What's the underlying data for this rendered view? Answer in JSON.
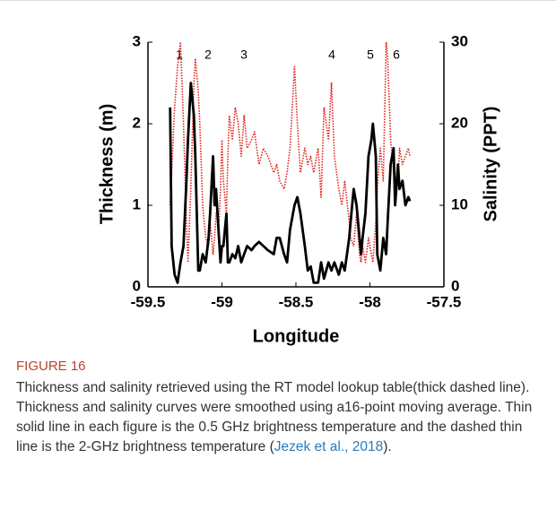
{
  "chart_data": {
    "type": "line",
    "xlabel": "Longitude",
    "ylabel": "Thickness (m)",
    "y2label": "Salinity (PPT)",
    "xlim": [
      -59.5,
      -57.5
    ],
    "xticks": [
      -59.5,
      -59,
      -58.5,
      -58,
      -57.5
    ],
    "ylim": [
      0,
      3
    ],
    "yticks": [
      0,
      1,
      2,
      3
    ],
    "y2lim": [
      0,
      30
    ],
    "y2ticks": [
      0,
      10,
      20,
      30
    ],
    "annotations": [
      "1",
      "2",
      "3",
      "4",
      "5",
      "6"
    ],
    "x": [
      -59.35,
      -59.34,
      -59.32,
      -59.3,
      -59.28,
      -59.26,
      -59.24,
      -59.23,
      -59.21,
      -59.19,
      -59.18,
      -59.16,
      -59.15,
      -59.13,
      -59.11,
      -59.09,
      -59.08,
      -59.06,
      -59.05,
      -59.04,
      -59.02,
      -59.01,
      -59.0,
      -58.99,
      -58.97,
      -58.96,
      -58.95,
      -58.93,
      -58.91,
      -58.89,
      -58.87,
      -58.85,
      -58.83,
      -58.8,
      -58.78,
      -58.75,
      -58.72,
      -58.69,
      -58.65,
      -58.63,
      -58.61,
      -58.58,
      -58.56,
      -58.54,
      -58.51,
      -58.49,
      -58.47,
      -58.44,
      -58.42,
      -58.4,
      -58.38,
      -58.35,
      -58.33,
      -58.31,
      -58.28,
      -58.26,
      -58.24,
      -58.21,
      -58.19,
      -58.17,
      -58.14,
      -58.13,
      -58.11,
      -58.09,
      -58.07,
      -58.06,
      -58.05,
      -58.03,
      -58.01,
      -57.99,
      -57.98,
      -57.96,
      -57.95,
      -57.93,
      -57.91,
      -57.89,
      -57.88,
      -57.86,
      -57.84,
      -57.83,
      -57.81,
      -57.8,
      -57.78,
      -57.76,
      -57.74,
      -57.73
    ],
    "series": [
      {
        "name": "Thickness",
        "color": "#000000",
        "axis": "y",
        "style": "solid",
        "values": [
          2.2,
          0.5,
          0.15,
          0.05,
          0.3,
          0.5,
          1.3,
          1.8,
          2.5,
          2.1,
          1.6,
          0.2,
          0.2,
          0.4,
          0.3,
          0.6,
          0.9,
          1.6,
          1.0,
          1.2,
          0.6,
          0.3,
          0.5,
          0.5,
          0.9,
          0.3,
          0.3,
          0.4,
          0.35,
          0.5,
          0.3,
          0.4,
          0.5,
          0.45,
          0.5,
          0.55,
          0.5,
          0.45,
          0.4,
          0.6,
          0.6,
          0.4,
          0.3,
          0.7,
          1.0,
          1.1,
          0.9,
          0.5,
          0.2,
          0.25,
          0.05,
          0.05,
          0.3,
          0.1,
          0.3,
          0.2,
          0.3,
          0.15,
          0.3,
          0.2,
          0.6,
          0.8,
          1.2,
          1.0,
          0.6,
          0.4,
          0.6,
          0.9,
          1.6,
          1.8,
          2.0,
          1.6,
          0.4,
          0.2,
          0.6,
          0.4,
          0.8,
          1.5,
          1.7,
          1.0,
          1.5,
          1.2,
          1.3,
          1.0,
          1.1,
          1.05
        ]
      },
      {
        "name": "Salinity",
        "color": "#e0201b",
        "axis": "y2",
        "style": "dotted",
        "values": [
          10,
          14,
          22,
          27,
          30,
          20,
          8,
          3,
          12,
          25,
          28,
          24,
          20,
          10,
          6,
          5,
          8,
          4,
          6,
          9,
          8,
          12,
          18,
          13,
          9,
          16,
          21,
          18,
          22,
          20,
          16,
          21,
          17,
          18,
          19,
          15,
          17,
          16,
          14,
          15,
          13,
          12,
          14,
          17,
          27,
          20,
          14,
          17,
          15,
          16,
          14,
          17,
          11,
          22,
          18,
          25,
          16,
          12,
          10,
          13,
          8,
          6,
          5,
          9,
          4,
          3,
          5,
          3,
          6,
          4,
          3,
          8,
          12,
          17,
          13,
          30,
          28,
          18,
          14,
          10,
          13,
          17,
          15,
          16,
          17,
          16
        ]
      }
    ]
  },
  "caption": {
    "label": "FIGURE 16",
    "text": "Thickness and salinity retrieved using the RT model lookup table(thick dashed line). Thickness and salinity curves were smoothed using a16-point moving average. Thin solid line in each figure is the 0.5 GHz brightness temperature and the dashed thin line is the 2-GHz brightness temperature (",
    "link": "Jezek et al., 2018",
    "end": ")."
  }
}
